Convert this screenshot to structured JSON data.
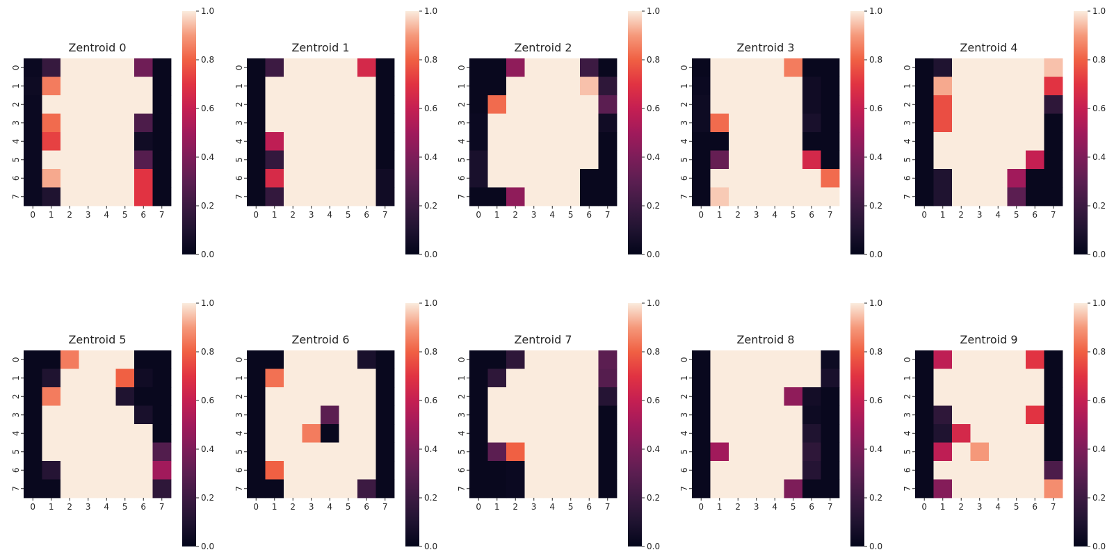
{
  "chart_data": {
    "type": "heatmap",
    "colormap": "rocket",
    "value_range": [
      0,
      1
    ],
    "colorbar_ticks": [
      "0.0",
      "0.2",
      "0.4",
      "0.6",
      "0.8",
      "1.0"
    ],
    "x_ticks": [
      "0",
      "1",
      "2",
      "3",
      "4",
      "5",
      "6",
      "7"
    ],
    "y_ticks": [
      "0",
      "1",
      "2",
      "3",
      "4",
      "5",
      "6",
      "7"
    ],
    "panels": [
      {
        "title": "Zentroid 0",
        "grid": [
          [
            0.03,
            0.18,
            1,
            1,
            1,
            1,
            0.36,
            0.02
          ],
          [
            0.04,
            0.85,
            1,
            1,
            1,
            1,
            1,
            0.02
          ],
          [
            0.03,
            1,
            1,
            1,
            1,
            1,
            1,
            0.02
          ],
          [
            0.03,
            0.82,
            1,
            1,
            1,
            1,
            0.25,
            0.02
          ],
          [
            0.03,
            0.73,
            1,
            1,
            1,
            1,
            0.05,
            0.02
          ],
          [
            0.03,
            1,
            1,
            1,
            1,
            1,
            0.28,
            0.02
          ],
          [
            0.03,
            0.92,
            1,
            1,
            1,
            1,
            0.7,
            0.02
          ],
          [
            0.03,
            0.1,
            1,
            1,
            1,
            1,
            0.7,
            0.02
          ]
        ]
      },
      {
        "title": "Zentroid 1",
        "grid": [
          [
            0.02,
            0.2,
            1,
            1,
            1,
            1,
            0.65,
            0.02
          ],
          [
            0.02,
            1,
            1,
            1,
            1,
            1,
            1,
            0.02
          ],
          [
            0.02,
            1,
            1,
            1,
            1,
            1,
            1,
            0.02
          ],
          [
            0.02,
            1,
            1,
            1,
            1,
            1,
            1,
            0.02
          ],
          [
            0.02,
            0.58,
            1,
            1,
            1,
            1,
            1,
            0.02
          ],
          [
            0.02,
            0.17,
            1,
            1,
            1,
            1,
            1,
            0.02
          ],
          [
            0.02,
            0.66,
            1,
            1,
            1,
            1,
            1,
            0.05
          ],
          [
            0.02,
            0.17,
            1,
            1,
            1,
            1,
            1,
            0.05
          ]
        ]
      },
      {
        "title": "Zentroid 2",
        "grid": [
          [
            0.02,
            0.02,
            0.45,
            1,
            1,
            1,
            0.2,
            0.02
          ],
          [
            0.02,
            0.02,
            1,
            1,
            1,
            1,
            0.95,
            0.15
          ],
          [
            0.02,
            0.82,
            1,
            1,
            1,
            1,
            1,
            0.3
          ],
          [
            0.03,
            1,
            1,
            1,
            1,
            1,
            1,
            0.05
          ],
          [
            0.03,
            1,
            1,
            1,
            1,
            1,
            1,
            0.02
          ],
          [
            0.08,
            1,
            1,
            1,
            1,
            1,
            1,
            0.02
          ],
          [
            0.08,
            1,
            1,
            1,
            1,
            1,
            0.02,
            0.02
          ],
          [
            0.02,
            0.02,
            0.45,
            1,
            1,
            1,
            0.02,
            0.02
          ]
        ]
      },
      {
        "title": "Zentroid 3",
        "grid": [
          [
            0.02,
            1,
            1,
            1,
            1,
            0.85,
            0.02,
            0.02
          ],
          [
            0.03,
            1,
            1,
            1,
            1,
            1,
            0.05,
            0.02
          ],
          [
            0.04,
            1,
            1,
            1,
            1,
            1,
            0.05,
            0.02
          ],
          [
            0.04,
            0.82,
            1,
            1,
            1,
            1,
            0.08,
            0.02
          ],
          [
            0.02,
            0.02,
            1,
            1,
            1,
            1,
            0.02,
            0.02
          ],
          [
            0.02,
            0.33,
            1,
            1,
            1,
            1,
            0.65,
            0.02
          ],
          [
            0.02,
            1,
            1,
            1,
            1,
            1,
            1,
            0.82
          ],
          [
            0.02,
            0.96,
            1,
            1,
            1,
            1,
            1,
            1
          ]
        ]
      },
      {
        "title": "Zentroid 4",
        "grid": [
          [
            0.02,
            0.1,
            1,
            1,
            1,
            1,
            1,
            0.95
          ],
          [
            0.02,
            0.92,
            1,
            1,
            1,
            1,
            1,
            0.7
          ],
          [
            0.02,
            0.76,
            1,
            1,
            1,
            1,
            1,
            0.15
          ],
          [
            0.02,
            0.76,
            1,
            1,
            1,
            1,
            1,
            0.02
          ],
          [
            0.02,
            1,
            1,
            1,
            1,
            1,
            1,
            0.02
          ],
          [
            0.02,
            1,
            1,
            1,
            1,
            1,
            0.6,
            0.02
          ],
          [
            0.02,
            0.1,
            1,
            1,
            1,
            0.5,
            0.02,
            0.02
          ],
          [
            0.02,
            0.1,
            1,
            1,
            1,
            0.3,
            0.02,
            0.02
          ]
        ]
      },
      {
        "title": "Zentroid 5",
        "grid": [
          [
            0.02,
            0.02,
            0.85,
            1,
            1,
            1,
            0.02,
            0.02
          ],
          [
            0.02,
            0.1,
            1,
            1,
            1,
            0.8,
            0.05,
            0.02
          ],
          [
            0.02,
            0.85,
            1,
            1,
            1,
            0.1,
            0.02,
            0.02
          ],
          [
            0.02,
            1,
            1,
            1,
            1,
            1,
            0.08,
            0.02
          ],
          [
            0.02,
            1,
            1,
            1,
            1,
            1,
            1,
            0.02
          ],
          [
            0.02,
            1,
            1,
            1,
            1,
            1,
            1,
            0.27
          ],
          [
            0.02,
            0.12,
            1,
            1,
            1,
            1,
            1,
            0.5
          ],
          [
            0.02,
            0.02,
            1,
            1,
            1,
            1,
            1,
            0.15
          ]
        ]
      },
      {
        "title": "Zentroid 6",
        "grid": [
          [
            0.02,
            0.02,
            1,
            1,
            1,
            1,
            0.08,
            0.02
          ],
          [
            0.02,
            0.83,
            1,
            1,
            1,
            1,
            1,
            0.02
          ],
          [
            0.02,
            1,
            1,
            1,
            1,
            1,
            1,
            0.02
          ],
          [
            0.02,
            1,
            1,
            1,
            0.3,
            1,
            1,
            0.02
          ],
          [
            0.02,
            1,
            1,
            0.85,
            0.02,
            1,
            1,
            0.02
          ],
          [
            0.02,
            1,
            1,
            1,
            1,
            1,
            1,
            0.02
          ],
          [
            0.02,
            0.8,
            1,
            1,
            1,
            1,
            1,
            0.02
          ],
          [
            0.02,
            0.02,
            1,
            1,
            1,
            1,
            0.2,
            0.02
          ]
        ]
      },
      {
        "title": "Zentroid 7",
        "grid": [
          [
            0.02,
            0.02,
            0.15,
            1,
            1,
            1,
            1,
            0.3
          ],
          [
            0.02,
            0.15,
            1,
            1,
            1,
            1,
            1,
            0.28
          ],
          [
            0.02,
            1,
            1,
            1,
            1,
            1,
            1,
            0.12
          ],
          [
            0.02,
            1,
            1,
            1,
            1,
            1,
            1,
            0.02
          ],
          [
            0.02,
            1,
            1,
            1,
            1,
            1,
            1,
            0.02
          ],
          [
            0.02,
            0.3,
            0.8,
            1,
            1,
            1,
            1,
            0.02
          ],
          [
            0.02,
            0.02,
            0.03,
            1,
            1,
            1,
            1,
            0.02
          ],
          [
            0.02,
            0.02,
            0.03,
            1,
            1,
            1,
            1,
            0.02
          ]
        ]
      },
      {
        "title": "Zentroid 8",
        "grid": [
          [
            0.02,
            1,
            1,
            1,
            1,
            1,
            1,
            0.04
          ],
          [
            0.02,
            1,
            1,
            1,
            1,
            1,
            1,
            0.08
          ],
          [
            0.02,
            1,
            1,
            1,
            1,
            0.45,
            0.06,
            0.02
          ],
          [
            0.02,
            1,
            1,
            1,
            1,
            1,
            0.04,
            0.02
          ],
          [
            0.02,
            1,
            1,
            1,
            1,
            1,
            0.1,
            0.02
          ],
          [
            0.02,
            0.5,
            1,
            1,
            1,
            1,
            0.15,
            0.02
          ],
          [
            0.02,
            1,
            1,
            1,
            1,
            1,
            0.12,
            0.02
          ],
          [
            0.02,
            1,
            1,
            1,
            1,
            0.4,
            0.02,
            0.02
          ]
        ]
      },
      {
        "title": "Zentroid 9",
        "grid": [
          [
            0.02,
            0.58,
            1,
            1,
            1,
            1,
            0.7,
            0.02
          ],
          [
            0.02,
            1,
            1,
            1,
            1,
            1,
            1,
            0.02
          ],
          [
            0.02,
            1,
            1,
            1,
            1,
            1,
            1,
            0.02
          ],
          [
            0.02,
            0.15,
            1,
            1,
            1,
            1,
            0.7,
            0.02
          ],
          [
            0.02,
            0.1,
            0.65,
            1,
            1,
            1,
            1,
            0.02
          ],
          [
            0.02,
            0.58,
            1,
            0.9,
            1,
            1,
            1,
            0.02
          ],
          [
            0.02,
            1,
            1,
            1,
            1,
            1,
            1,
            0.25
          ],
          [
            0.02,
            0.42,
            1,
            1,
            1,
            1,
            1,
            0.88
          ]
        ]
      }
    ]
  }
}
